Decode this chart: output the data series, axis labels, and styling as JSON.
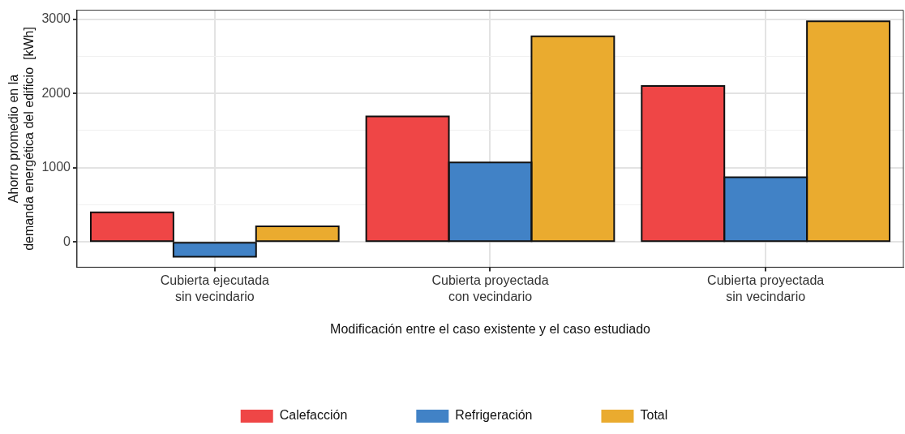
{
  "chart_data": {
    "type": "bar",
    "xlabel": "Modificación entre el caso existente y el caso estudiado",
    "ylabel": "Ahorro promedio en la\ndemanda energética del edificio  [kWh]",
    "categories": [
      "Cubierta ejecutada\nsin vecindario",
      "Cubierta proyectada\ncon vecindario",
      "Cubierta proyectada\nsin vecindario"
    ],
    "series": [
      {
        "name": "Calefacción",
        "color": "#ef4646",
        "values": [
          400,
          1690,
          2100
        ]
      },
      {
        "name": "Refrigeración",
        "color": "#4182c6",
        "values": [
          -200,
          1070,
          870
        ]
      },
      {
        "name": "Total",
        "color": "#eaab2f",
        "values": [
          210,
          2770,
          2970
        ]
      }
    ],
    "ylim": [
      -340,
      3120
    ],
    "yticks": [
      0,
      {
        "value": 500,
        "label": null
      },
      1000,
      {
        "value": 1500,
        "label": null
      },
      2000,
      {
        "value": 2500,
        "label": null
      },
      3000
    ],
    "grid": true,
    "legend": "bottom"
  }
}
